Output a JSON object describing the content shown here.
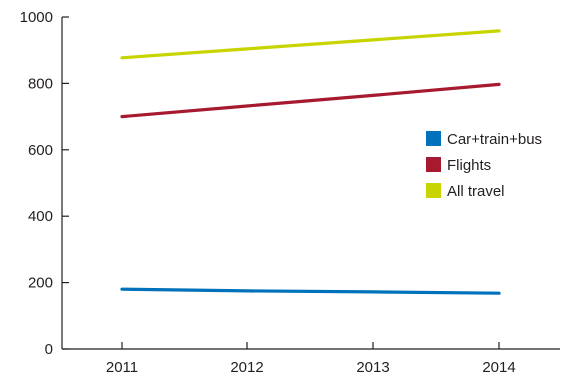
{
  "chart_data": {
    "type": "line",
    "x": [
      "2011",
      "2012",
      "2013",
      "2014"
    ],
    "series": [
      {
        "name": "Car+train+bus",
        "color": "#0072bb",
        "values": [
          180,
          175,
          172,
          168
        ]
      },
      {
        "name": "Flights",
        "color": "#a6192e",
        "values": [
          700,
          732,
          764,
          797
        ]
      },
      {
        "name": "All travel",
        "color": "#c8d400",
        "values": [
          877,
          904,
          931,
          958
        ]
      }
    ],
    "yticks": [
      0,
      200,
      400,
      600,
      800,
      1000
    ],
    "ylim": [
      0,
      1000
    ],
    "legend_position": "right",
    "grid": false,
    "title": "",
    "xlabel": "",
    "ylabel": ""
  }
}
